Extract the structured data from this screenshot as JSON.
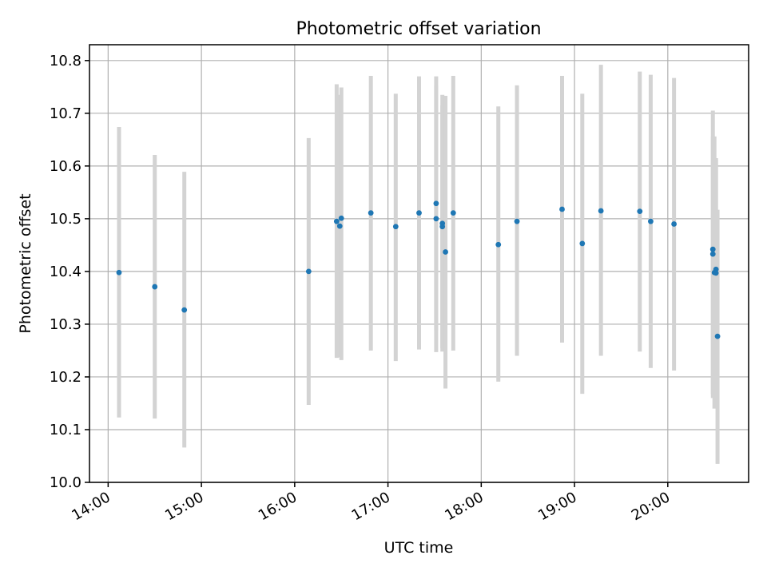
{
  "chart_data": {
    "type": "scatter",
    "title": "Photometric offset variation",
    "xlabel": "UTC time",
    "ylabel": "Photometric offset",
    "x_format": "HH:MM",
    "xlim": [
      "13:48",
      "20:52"
    ],
    "ylim": [
      10.0,
      10.83
    ],
    "xticks": [
      "14:00",
      "15:00",
      "16:00",
      "17:00",
      "18:00",
      "19:00",
      "20:00"
    ],
    "yticks": [
      "10.0",
      "10.1",
      "10.2",
      "10.3",
      "10.4",
      "10.5",
      "10.6",
      "10.7",
      "10.8"
    ],
    "grid": true,
    "colors": {
      "points": "#1f77b4",
      "errorbars": "#d3d3d3"
    },
    "points": [
      {
        "t": "14:07",
        "y": 10.398,
        "lo": 10.123,
        "hi": 10.674
      },
      {
        "t": "14:30",
        "y": 10.371,
        "lo": 10.121,
        "hi": 10.621
      },
      {
        "t": "14:49",
        "y": 10.327,
        "lo": 10.066,
        "hi": 10.589
      },
      {
        "t": "16:09",
        "y": 10.4,
        "lo": 10.147,
        "hi": 10.653
      },
      {
        "t": "16:27",
        "y": 10.495,
        "lo": 10.236,
        "hi": 10.755
      },
      {
        "t": "16:29",
        "y": 10.486,
        "lo": 10.237,
        "hi": 10.735
      },
      {
        "t": "16:30",
        "y": 10.501,
        "lo": 10.232,
        "hi": 10.749
      },
      {
        "t": "16:49",
        "y": 10.511,
        "lo": 10.25,
        "hi": 10.771
      },
      {
        "t": "17:05",
        "y": 10.485,
        "lo": 10.23,
        "hi": 10.737
      },
      {
        "t": "17:20",
        "y": 10.511,
        "lo": 10.252,
        "hi": 10.77
      },
      {
        "t": "17:31",
        "y": 10.529,
        "lo": 10.288,
        "hi": 10.77
      },
      {
        "t": "17:31",
        "y": 10.5,
        "lo": 10.247,
        "hi": 10.752
      },
      {
        "t": "17:35",
        "y": 10.491,
        "lo": 10.248,
        "hi": 10.735
      },
      {
        "t": "17:35",
        "y": 10.485,
        "lo": 10.254,
        "hi": 10.715
      },
      {
        "t": "17:37",
        "y": 10.437,
        "lo": 10.178,
        "hi": 10.733
      },
      {
        "t": "17:42",
        "y": 10.511,
        "lo": 10.25,
        "hi": 10.771
      },
      {
        "t": "18:11",
        "y": 10.451,
        "lo": 10.191,
        "hi": 10.713
      },
      {
        "t": "18:23",
        "y": 10.495,
        "lo": 10.24,
        "hi": 10.753
      },
      {
        "t": "18:52",
        "y": 10.518,
        "lo": 10.265,
        "hi": 10.771
      },
      {
        "t": "19:05",
        "y": 10.453,
        "lo": 10.168,
        "hi": 10.737
      },
      {
        "t": "19:17",
        "y": 10.515,
        "lo": 10.24,
        "hi": 10.792
      },
      {
        "t": "19:42",
        "y": 10.514,
        "lo": 10.248,
        "hi": 10.779
      },
      {
        "t": "19:49",
        "y": 10.495,
        "lo": 10.217,
        "hi": 10.773
      },
      {
        "t": "20:04",
        "y": 10.49,
        "lo": 10.212,
        "hi": 10.767
      },
      {
        "t": "20:29",
        "y": 10.442,
        "lo": 10.167,
        "hi": 10.705
      },
      {
        "t": "20:29",
        "y": 10.433,
        "lo": 10.16,
        "hi": 10.656
      },
      {
        "t": "20:30",
        "y": 10.398,
        "lo": 10.14,
        "hi": 10.656
      },
      {
        "t": "20:31",
        "y": 10.397,
        "lo": 10.165,
        "hi": 10.615
      },
      {
        "t": "20:31",
        "y": 10.404,
        "lo": 10.16,
        "hi": 10.613
      },
      {
        "t": "20:32",
        "y": 10.277,
        "lo": 10.035,
        "hi": 10.517
      }
    ]
  }
}
